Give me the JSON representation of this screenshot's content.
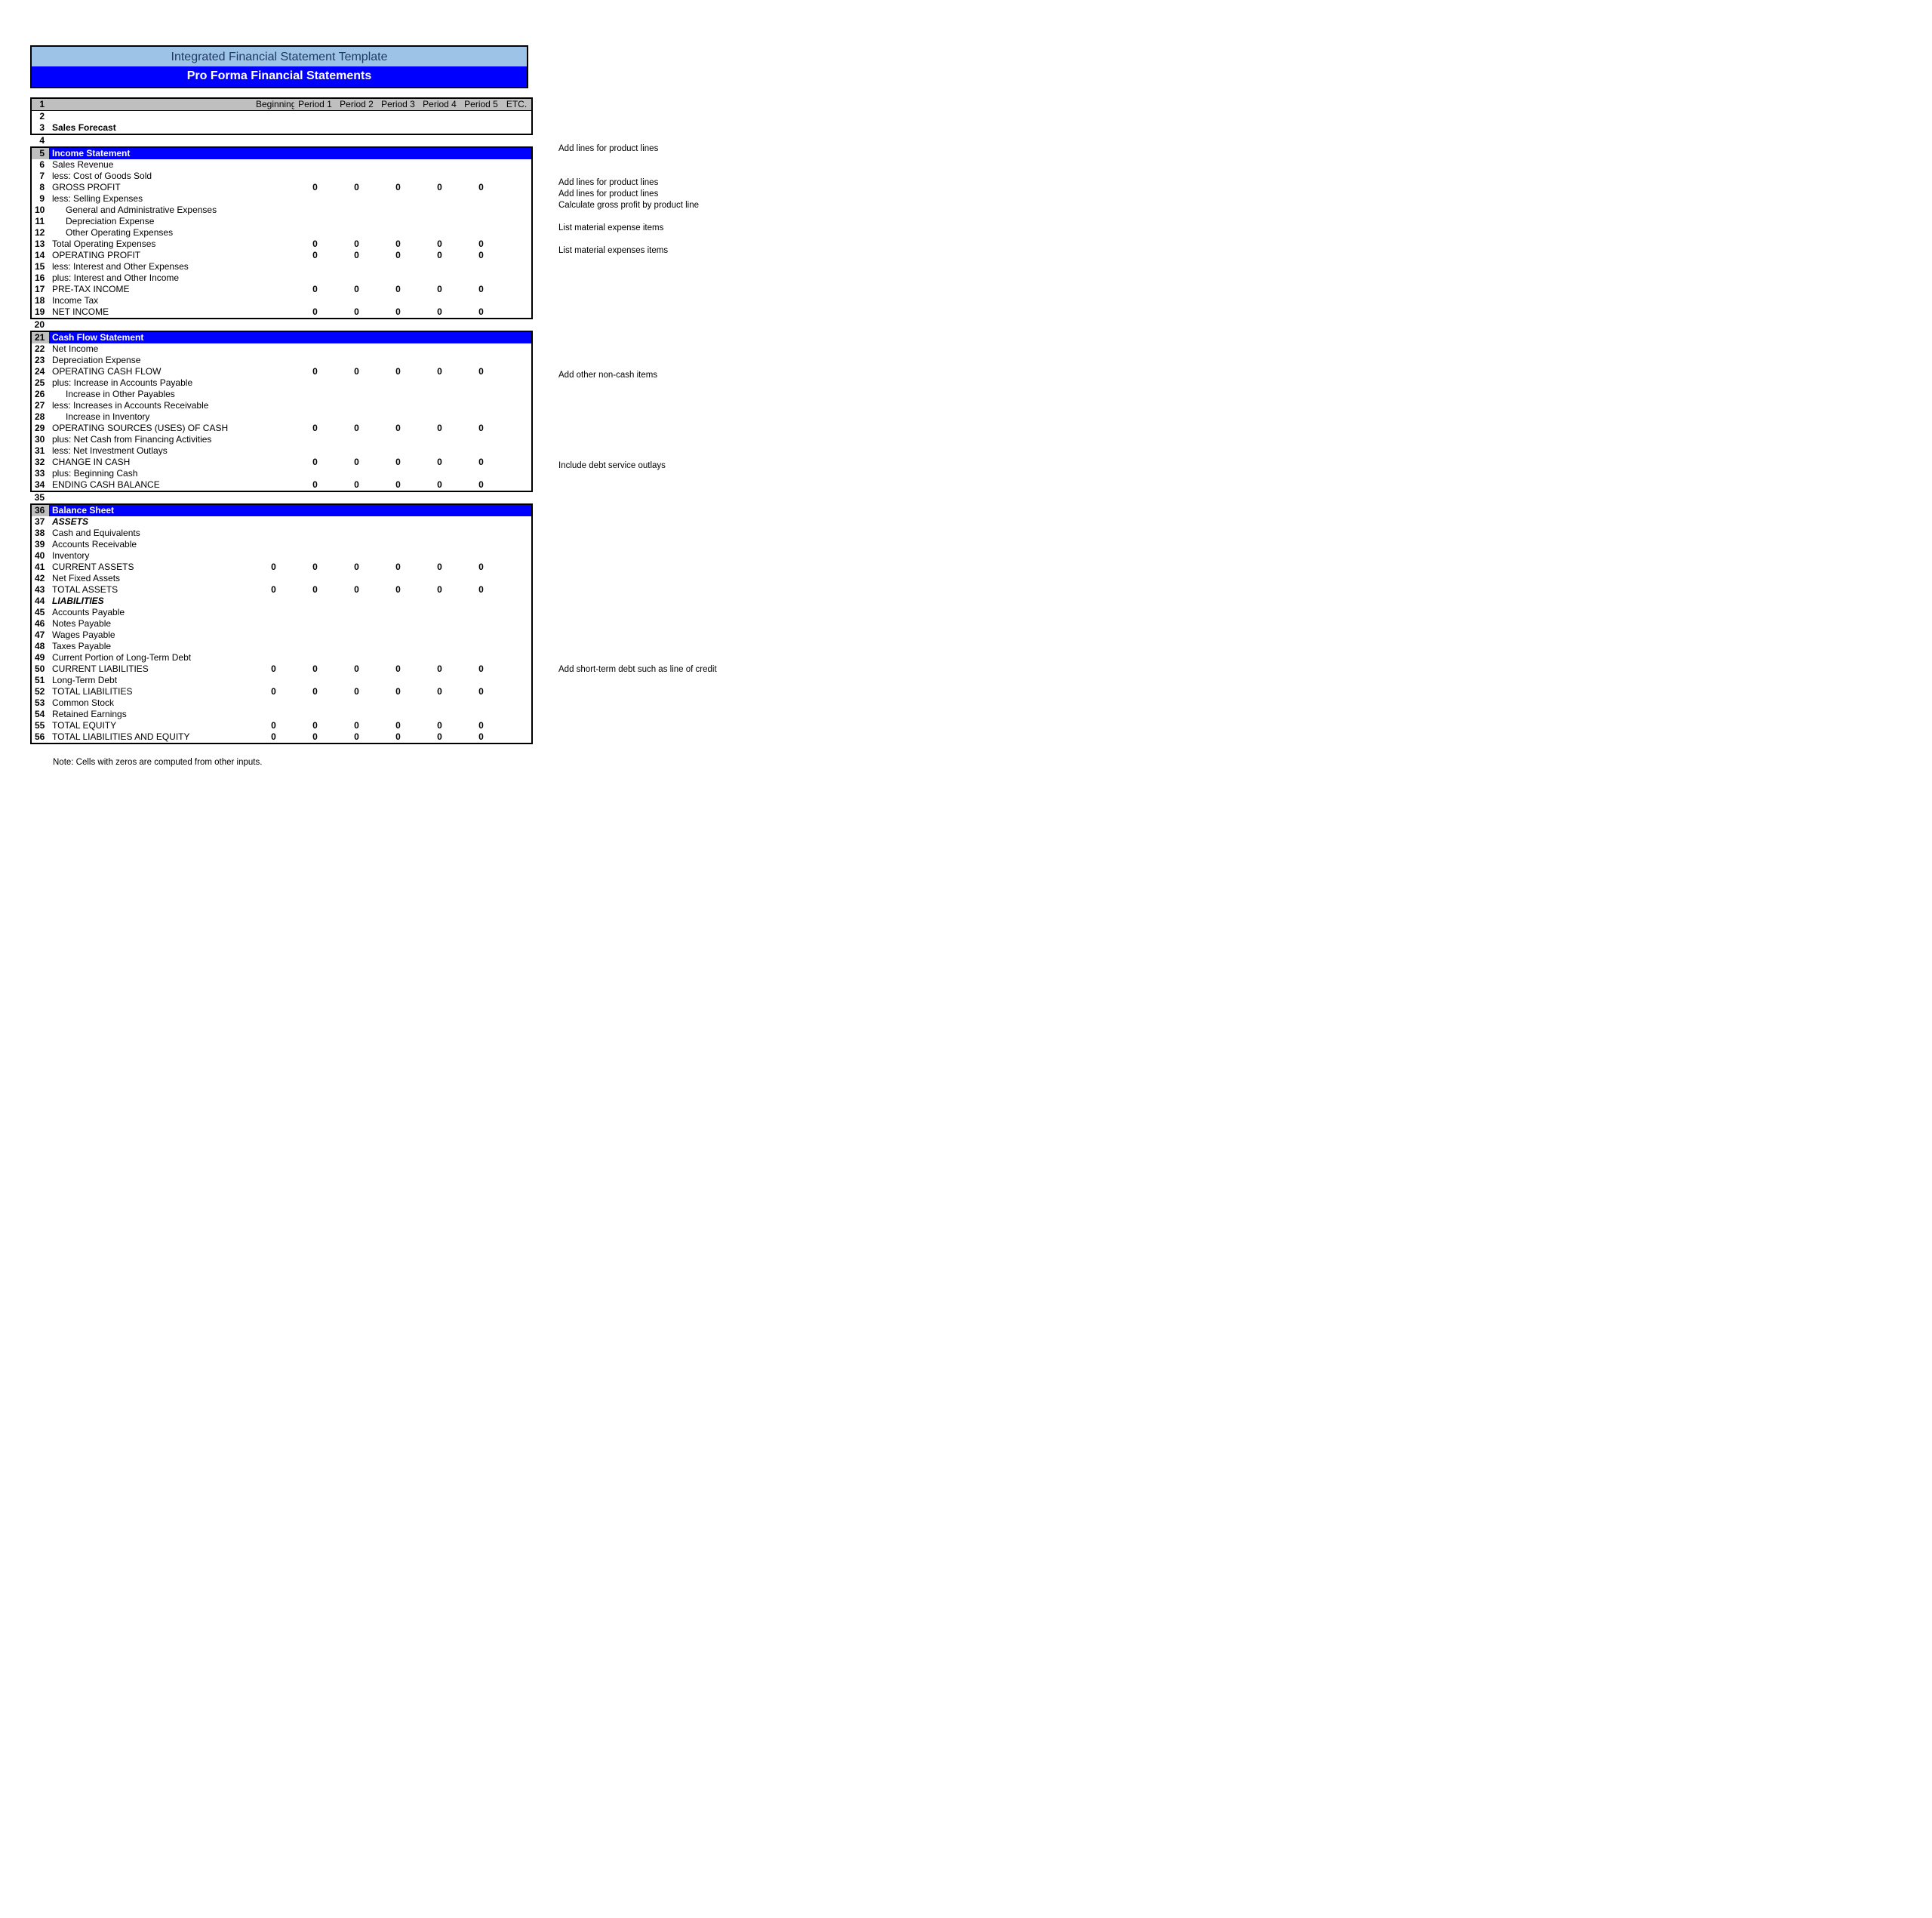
{
  "colors": {
    "title1_bg": "#9dc3e6",
    "title2_bg": "#0000ff",
    "section_bg": "#0000ff",
    "header_bg": "#bfbfbf",
    "text_light": "#ffffff"
  },
  "title1": "Integrated Financial Statement Template",
  "title2": "Pro Forma Financial Statements",
  "columns": [
    "Beginning",
    "Period 1",
    "Period 2",
    "Period 3",
    "Period 4",
    "Period 5",
    "ETC."
  ],
  "rows": [
    {
      "n": "1",
      "type": "header"
    },
    {
      "n": "2",
      "label": ""
    },
    {
      "n": "3",
      "label": "Sales Forecast",
      "bold": true,
      "note": "Add lines for product lines",
      "bottom": true
    },
    {
      "n": "4",
      "label": "",
      "spacer": true
    },
    {
      "n": "5",
      "label": "Income Statement",
      "section": true,
      "top": true
    },
    {
      "n": "6",
      "label": "Sales Revenue",
      "note": "Add lines for product lines"
    },
    {
      "n": "7",
      "label": "less: Cost of Goods Sold",
      "note": "Add lines for product lines"
    },
    {
      "n": "8",
      "label": "GROSS PROFIT",
      "vals": [
        "",
        "0",
        "0",
        "0",
        "0",
        "0",
        ""
      ],
      "note": "Calculate gross profit by product line"
    },
    {
      "n": "9",
      "label": "less: Selling Expenses"
    },
    {
      "n": "10",
      "label": "General and Administrative Expenses",
      "indent": 1,
      "note": "List material expense  items"
    },
    {
      "n": "11",
      "label": "Depreciation Expense",
      "indent": 1
    },
    {
      "n": "12",
      "label": "Other Operating Expenses",
      "indent": 1,
      "note": "List material expenses items"
    },
    {
      "n": "13",
      "label": "Total Operating Expenses",
      "vals": [
        "",
        "0",
        "0",
        "0",
        "0",
        "0",
        ""
      ]
    },
    {
      "n": "14",
      "label": "OPERATING PROFIT",
      "vals": [
        "",
        "0",
        "0",
        "0",
        "0",
        "0",
        ""
      ]
    },
    {
      "n": "15",
      "label": "less: Interest and Other Expenses"
    },
    {
      "n": "16",
      "label": "plus: Interest and Other Income"
    },
    {
      "n": "17",
      "label": "PRE-TAX INCOME",
      "vals": [
        "",
        "0",
        "0",
        "0",
        "0",
        "0",
        ""
      ]
    },
    {
      "n": "18",
      "label": "Income Tax"
    },
    {
      "n": "19",
      "label": "NET INCOME",
      "vals": [
        "",
        "0",
        "0",
        "0",
        "0",
        "0",
        ""
      ],
      "bottom": true
    },
    {
      "n": "20",
      "label": "",
      "spacer": true
    },
    {
      "n": "21",
      "label": "Cash Flow Statement",
      "section": true,
      "top": true
    },
    {
      "n": "22",
      "label": "Net Income"
    },
    {
      "n": "23",
      "label": "Depreciation Expense",
      "note": "Add other non-cash items"
    },
    {
      "n": "24",
      "label": "OPERATING CASH FLOW",
      "vals": [
        "",
        "0",
        "0",
        "0",
        "0",
        "0",
        ""
      ]
    },
    {
      "n": "25",
      "label": "plus: Increase in Accounts Payable"
    },
    {
      "n": "26",
      "label": "Increase in Other Payables",
      "indent": 1
    },
    {
      "n": "27",
      "label": "less: Increases in Accounts Receivable"
    },
    {
      "n": "28",
      "label": "Increase in Inventory",
      "indent": 1
    },
    {
      "n": "29",
      "label": "OPERATING SOURCES (USES) OF CASH",
      "vals": [
        "",
        "0",
        "0",
        "0",
        "0",
        "0",
        ""
      ]
    },
    {
      "n": "30",
      "label": "plus: Net Cash from Financing Activities"
    },
    {
      "n": "31",
      "label": "less: Net Investment Outlays",
      "note": "Include debt service outlays"
    },
    {
      "n": "32",
      "label": "CHANGE IN CASH",
      "vals": [
        "",
        "0",
        "0",
        "0",
        "0",
        "0",
        ""
      ]
    },
    {
      "n": "33",
      "label": "plus: Beginning Cash"
    },
    {
      "n": "34",
      "label": "ENDING CASH BALANCE",
      "vals": [
        "",
        "0",
        "0",
        "0",
        "0",
        "0",
        ""
      ],
      "bottom": true
    },
    {
      "n": "35",
      "label": "",
      "spacer": true
    },
    {
      "n": "36",
      "label": "Balance Sheet",
      "section": true,
      "top": true
    },
    {
      "n": "37",
      "label": "ASSETS",
      "bold": true,
      "italic": true
    },
    {
      "n": "38",
      "label": "Cash and Equivalents"
    },
    {
      "n": "39",
      "label": "Accounts Receivable"
    },
    {
      "n": "40",
      "label": "Inventory"
    },
    {
      "n": "41",
      "label": "CURRENT ASSETS",
      "vals": [
        "0",
        "0",
        "0",
        "0",
        "0",
        "0",
        ""
      ]
    },
    {
      "n": "42",
      "label": "Net Fixed Assets"
    },
    {
      "n": "43",
      "label": "TOTAL ASSETS",
      "vals": [
        "0",
        "0",
        "0",
        "0",
        "0",
        "0",
        ""
      ]
    },
    {
      "n": "44",
      "label": "LIABILITIES",
      "bold": true,
      "italic": true
    },
    {
      "n": "45",
      "label": "Accounts Payable"
    },
    {
      "n": "46",
      "label": "Notes Payable"
    },
    {
      "n": "47",
      "label": "Wages Payable"
    },
    {
      "n": "48",
      "label": "Taxes Payable"
    },
    {
      "n": "49",
      "label": "Current Portion of Long-Term Debt",
      "note": "Add short-term debt such as line of credit"
    },
    {
      "n": "50",
      "label": "CURRENT LIABILITIES",
      "vals": [
        "0",
        "0",
        "0",
        "0",
        "0",
        "0",
        ""
      ]
    },
    {
      "n": "51",
      "label": "Long-Term Debt"
    },
    {
      "n": "52",
      "label": "TOTAL LIABILITIES",
      "vals": [
        "0",
        "0",
        "0",
        "0",
        "0",
        "0",
        ""
      ]
    },
    {
      "n": "53",
      "label": "Common Stock"
    },
    {
      "n": "54",
      "label": "Retained Earnings"
    },
    {
      "n": "55",
      "label": "TOTAL EQUITY",
      "vals": [
        "0",
        "0",
        "0",
        "0",
        "0",
        "0",
        ""
      ]
    },
    {
      "n": "56",
      "label": "TOTAL LIABILITIES AND EQUITY",
      "vals": [
        "0",
        "0",
        "0",
        "0",
        "0",
        "0",
        ""
      ],
      "bottom": true
    }
  ],
  "footnote": "Note: Cells with zeros are computed from other inputs."
}
